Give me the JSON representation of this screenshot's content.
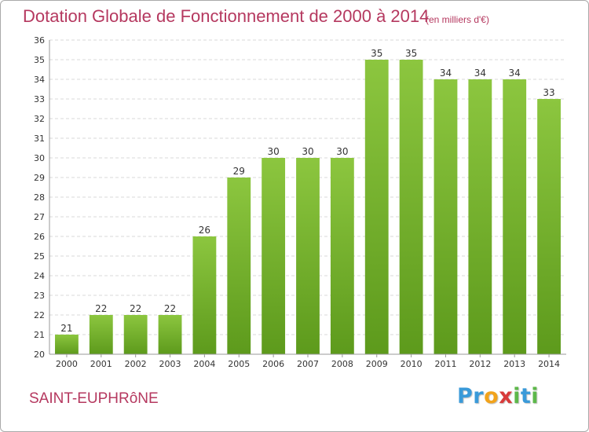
{
  "header": {
    "title": "Dotation Globale de Fonctionnement de 2000 à 2014",
    "unit_note": "(en milliers d'€)"
  },
  "footer": {
    "commune": "SAINT-EUPHRôNE",
    "logo_text": "Proxiti",
    "logo_letters": [
      {
        "char": "P",
        "color": "#3a9ad9"
      },
      {
        "char": "r",
        "color": "#3a9ad9"
      },
      {
        "char": "o",
        "color": "#f2a31b"
      },
      {
        "char": "x",
        "color": "#d83a3a"
      },
      {
        "char": "i",
        "color": "#5db84a"
      },
      {
        "char": "t",
        "color": "#3a9ad9"
      },
      {
        "char": "i",
        "color": "#5db84a"
      }
    ]
  },
  "chart_data": {
    "type": "bar",
    "categories": [
      "2000",
      "2001",
      "2002",
      "2003",
      "2004",
      "2005",
      "2006",
      "2007",
      "2008",
      "2009",
      "2010",
      "2011",
      "2012",
      "2013",
      "2014"
    ],
    "values": [
      21,
      22,
      22,
      22,
      26,
      29,
      30,
      30,
      30,
      35,
      35,
      34,
      34,
      34,
      33
    ],
    "ylim": [
      20,
      36
    ],
    "yticks": [
      20,
      21,
      22,
      23,
      24,
      25,
      26,
      27,
      28,
      29,
      30,
      31,
      32,
      33,
      34,
      35,
      36
    ],
    "grid": true,
    "bar_color": "#8cc63f",
    "bar_color_dark": "#5d9a1c"
  }
}
